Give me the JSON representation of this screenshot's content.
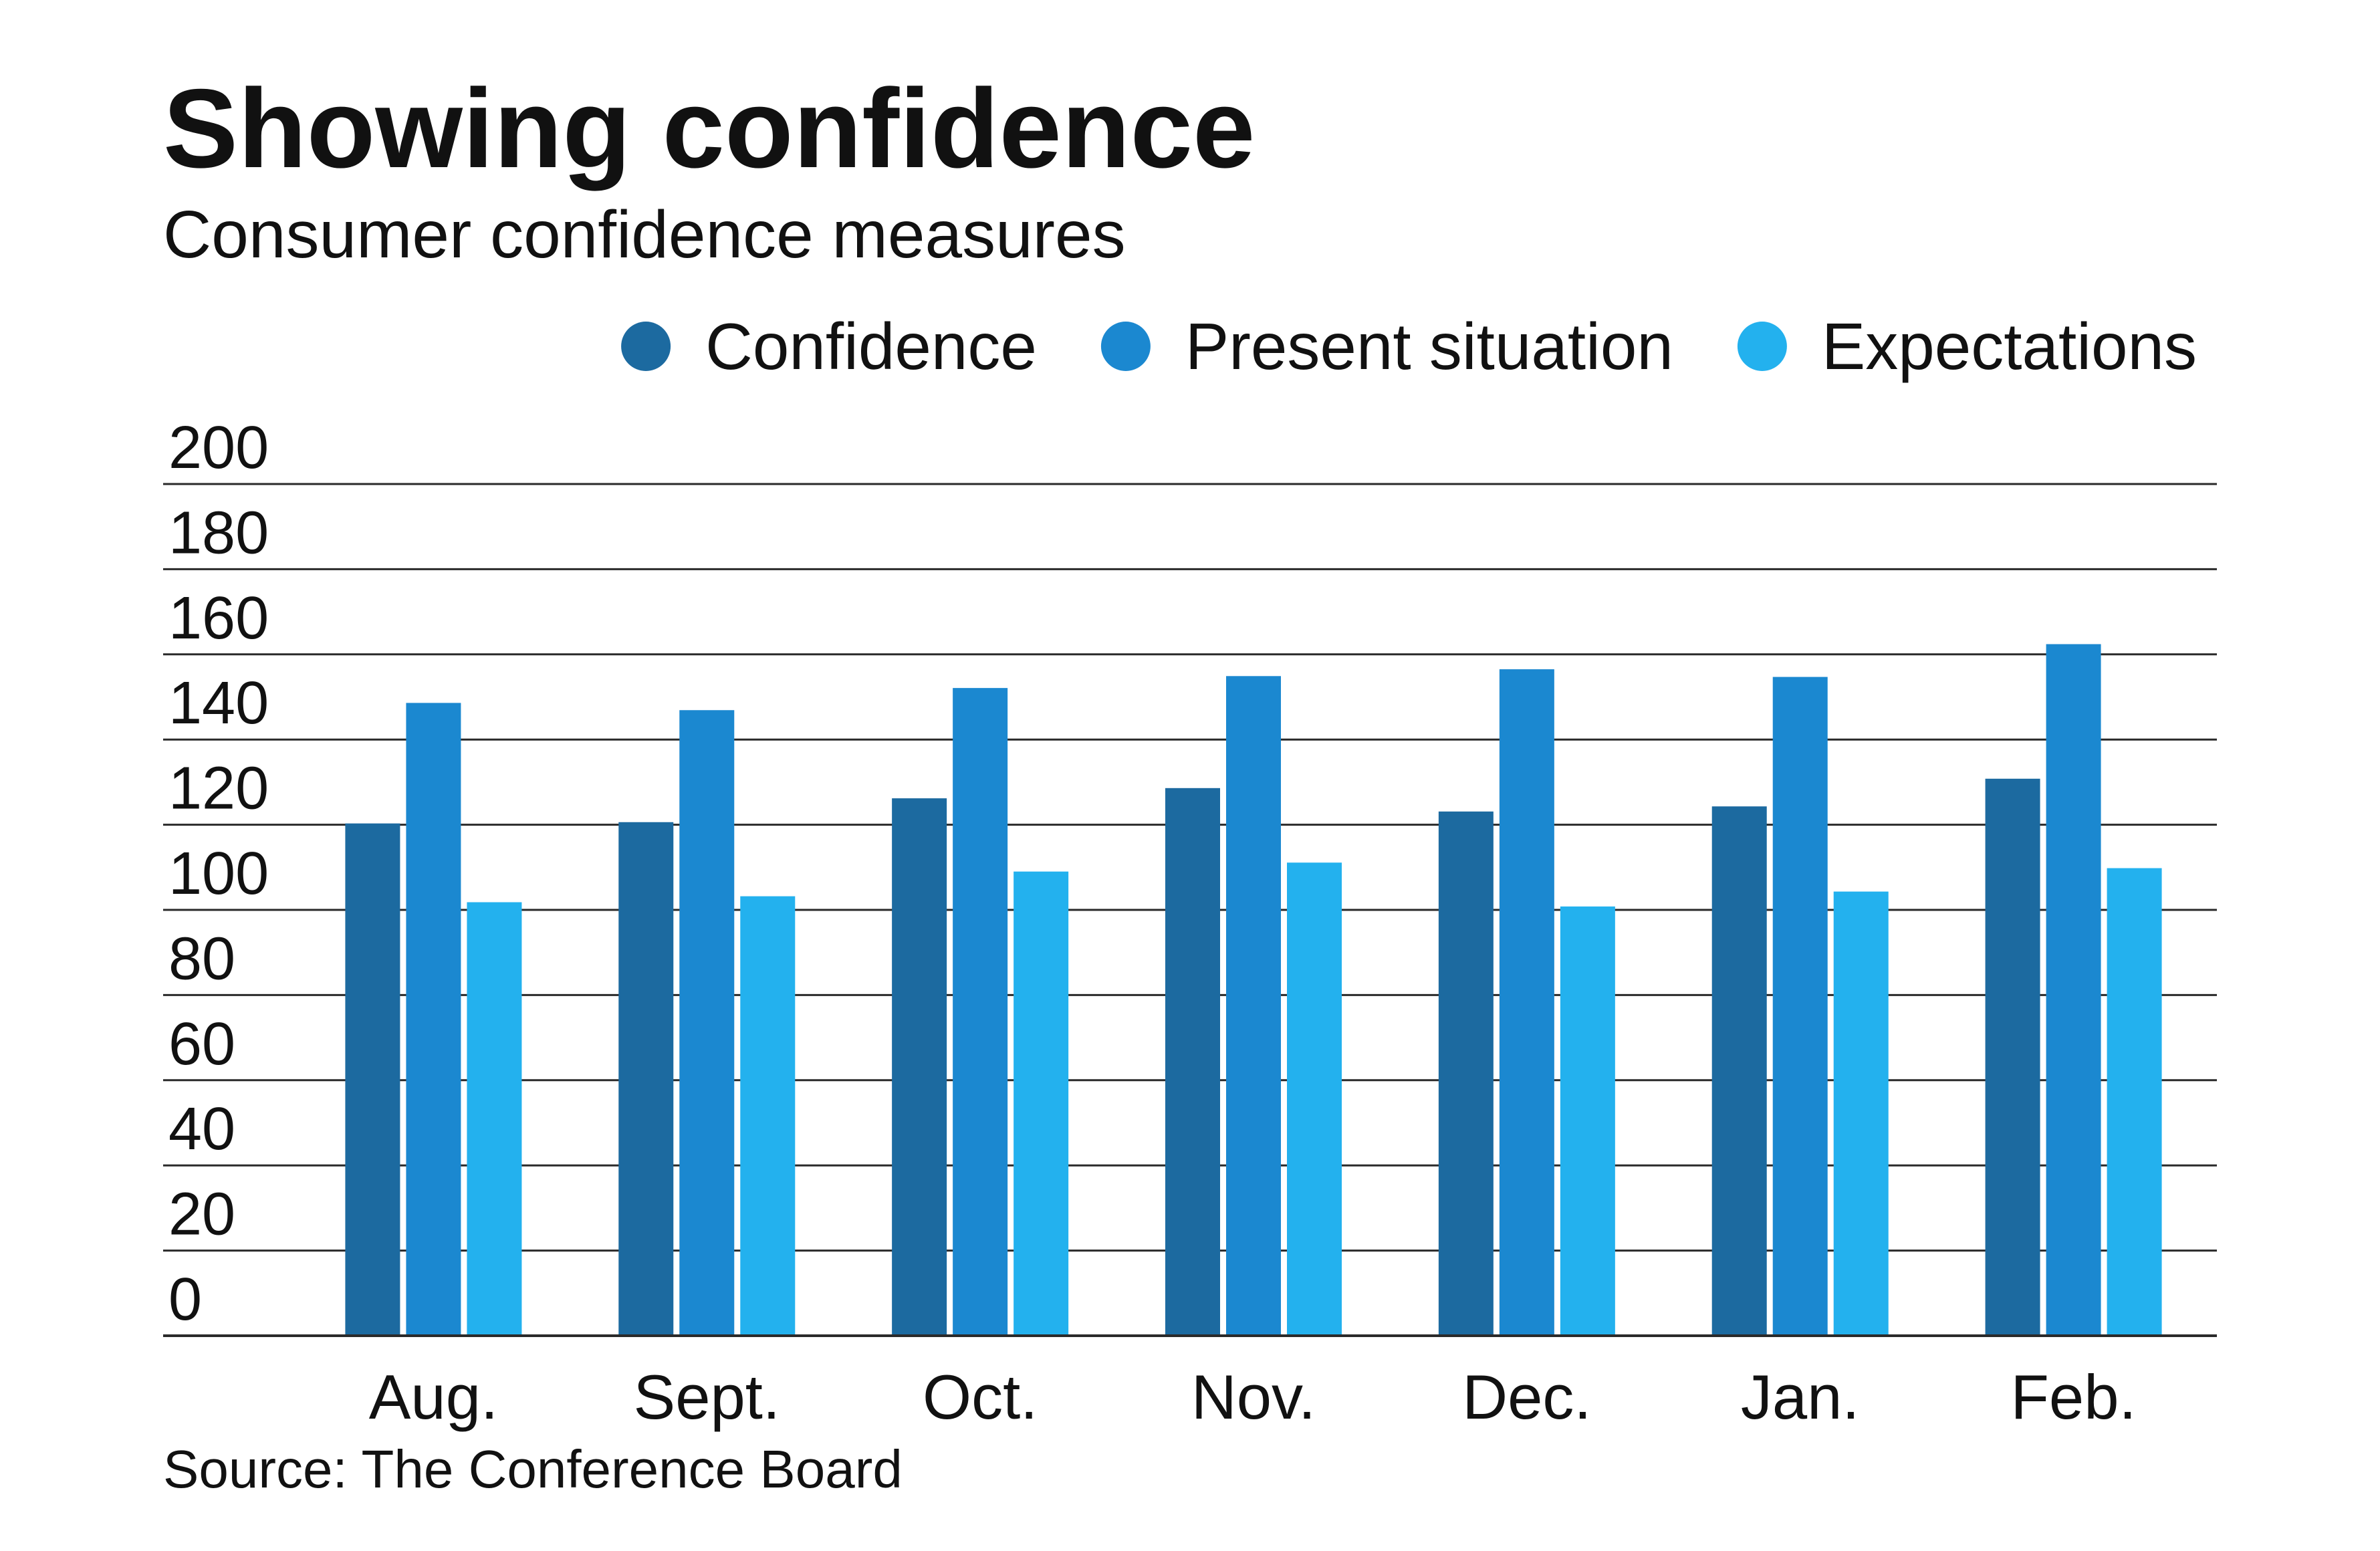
{
  "chart_data": {
    "type": "bar",
    "title": "Showing confidence",
    "subtitle": "Consumer confidence measures",
    "source": "Source: The Conference Board",
    "categories": [
      "Aug.",
      "Sept.",
      "Oct.",
      "Nov.",
      "Dec.",
      "Jan.",
      "Feb."
    ],
    "series": [
      {
        "name": "Confidence",
        "color": "#1c6aa0",
        "values": [
          120.3,
          120.6,
          126.2,
          128.6,
          123.1,
          124.3,
          130.8
        ]
      },
      {
        "name": "Present situation",
        "color": "#1b88d0",
        "values": [
          148.6,
          146.9,
          152.1,
          154.9,
          156.5,
          154.7,
          162.4
        ]
      },
      {
        "name": "Expectations",
        "color": "#23b1ee",
        "values": [
          101.8,
          103.2,
          109.0,
          111.1,
          100.8,
          104.3,
          109.8
        ]
      }
    ],
    "yticks": [
      0,
      20,
      40,
      60,
      80,
      100,
      120,
      140,
      160,
      180,
      200
    ],
    "ylim": [
      0,
      200
    ],
    "xlabel": "",
    "ylabel": "",
    "grid": true,
    "legend_position": "top-right"
  }
}
